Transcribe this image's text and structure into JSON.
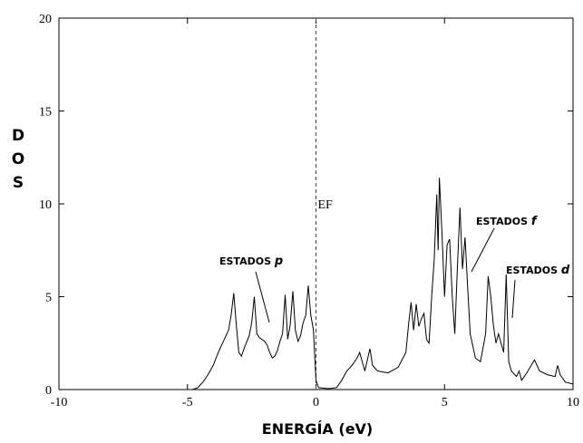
{
  "chart_data": {
    "type": "line",
    "xlabel": "ENERGÍA (eV)",
    "ylabel": "DOS",
    "xlim": [
      -10,
      10
    ],
    "ylim": [
      0,
      20
    ],
    "xticks": [
      -10,
      -5,
      0,
      5,
      10
    ],
    "yticks": [
      0,
      5,
      10,
      15,
      20
    ],
    "vline": {
      "x": 0,
      "label": "EF"
    },
    "annotations": [
      {
        "text": "ESTADOS",
        "italic": "p"
      },
      {
        "text": "ESTADOS",
        "italic": "f"
      },
      {
        "text": "ESTADOS",
        "italic": "d"
      }
    ],
    "series": [
      {
        "color": "#000000",
        "x": [
          -10,
          -4.8,
          -4.6,
          -4.4,
          -4.2,
          -4.0,
          -3.8,
          -3.6,
          -3.4,
          -3.3,
          -3.2,
          -3.1,
          -3.0,
          -2.9,
          -2.8,
          -2.6,
          -2.5,
          -2.4,
          -2.3,
          -2.2,
          -2.0,
          -1.9,
          -1.8,
          -1.7,
          -1.6,
          -1.5,
          -1.4,
          -1.3,
          -1.2,
          -1.1,
          -1.0,
          -0.9,
          -0.8,
          -0.7,
          -0.6,
          -0.5,
          -0.4,
          -0.3,
          -0.2,
          -0.1,
          0,
          0.1,
          0.5,
          0.8,
          1.0,
          1.2,
          1.4,
          1.6,
          1.7,
          1.8,
          1.9,
          2.0,
          2.1,
          2.2,
          2.4,
          2.8,
          3.2,
          3.5,
          3.6,
          3.7,
          3.8,
          3.9,
          4.0,
          4.1,
          4.2,
          4.3,
          4.4,
          4.5,
          4.6,
          4.7,
          4.75,
          4.8,
          4.9,
          5.0,
          5.1,
          5.2,
          5.3,
          5.4,
          5.5,
          5.6,
          5.7,
          5.8,
          5.9,
          6.0,
          6.2,
          6.4,
          6.6,
          6.7,
          6.8,
          6.9,
          7.0,
          7.1,
          7.2,
          7.3,
          7.4,
          7.5,
          7.6,
          7.8,
          7.9,
          8.0,
          8.2,
          8.5,
          8.7,
          9.0,
          9.3,
          9.4,
          9.5,
          9.7,
          10
        ],
        "values": [
          0,
          0,
          0.1,
          0.4,
          0.8,
          1.3,
          2.0,
          2.6,
          3.2,
          4.0,
          5.2,
          3.5,
          2.0,
          1.8,
          2.2,
          2.9,
          3.6,
          5.0,
          3.0,
          2.8,
          2.6,
          2.4,
          2.0,
          1.7,
          1.8,
          2.1,
          2.6,
          3.0,
          5.1,
          2.7,
          3.5,
          5.3,
          3.2,
          2.6,
          2.9,
          3.6,
          4.0,
          5.6,
          4.0,
          3.2,
          0.5,
          0.1,
          0.05,
          0.1,
          0.5,
          1.0,
          1.3,
          1.7,
          2.0,
          1.5,
          1.0,
          1.6,
          2.2,
          1.3,
          1.0,
          0.9,
          1.2,
          2.0,
          3.5,
          4.7,
          3.2,
          4.6,
          3.4,
          3.8,
          4.1,
          2.7,
          2.5,
          5.0,
          7.0,
          10.5,
          7.5,
          11.4,
          8.5,
          5.0,
          7.8,
          8.1,
          5.0,
          3.0,
          6.5,
          9.8,
          6.5,
          8.2,
          5.5,
          3.0,
          1.7,
          1.5,
          3.0,
          6.1,
          5.0,
          3.5,
          2.5,
          3.0,
          2.5,
          2.0,
          6.2,
          1.5,
          1.0,
          0.7,
          1.0,
          0.5,
          0.9,
          1.6,
          1.0,
          0.8,
          0.7,
          1.3,
          0.8,
          0.4,
          0.3
        ]
      }
    ]
  }
}
